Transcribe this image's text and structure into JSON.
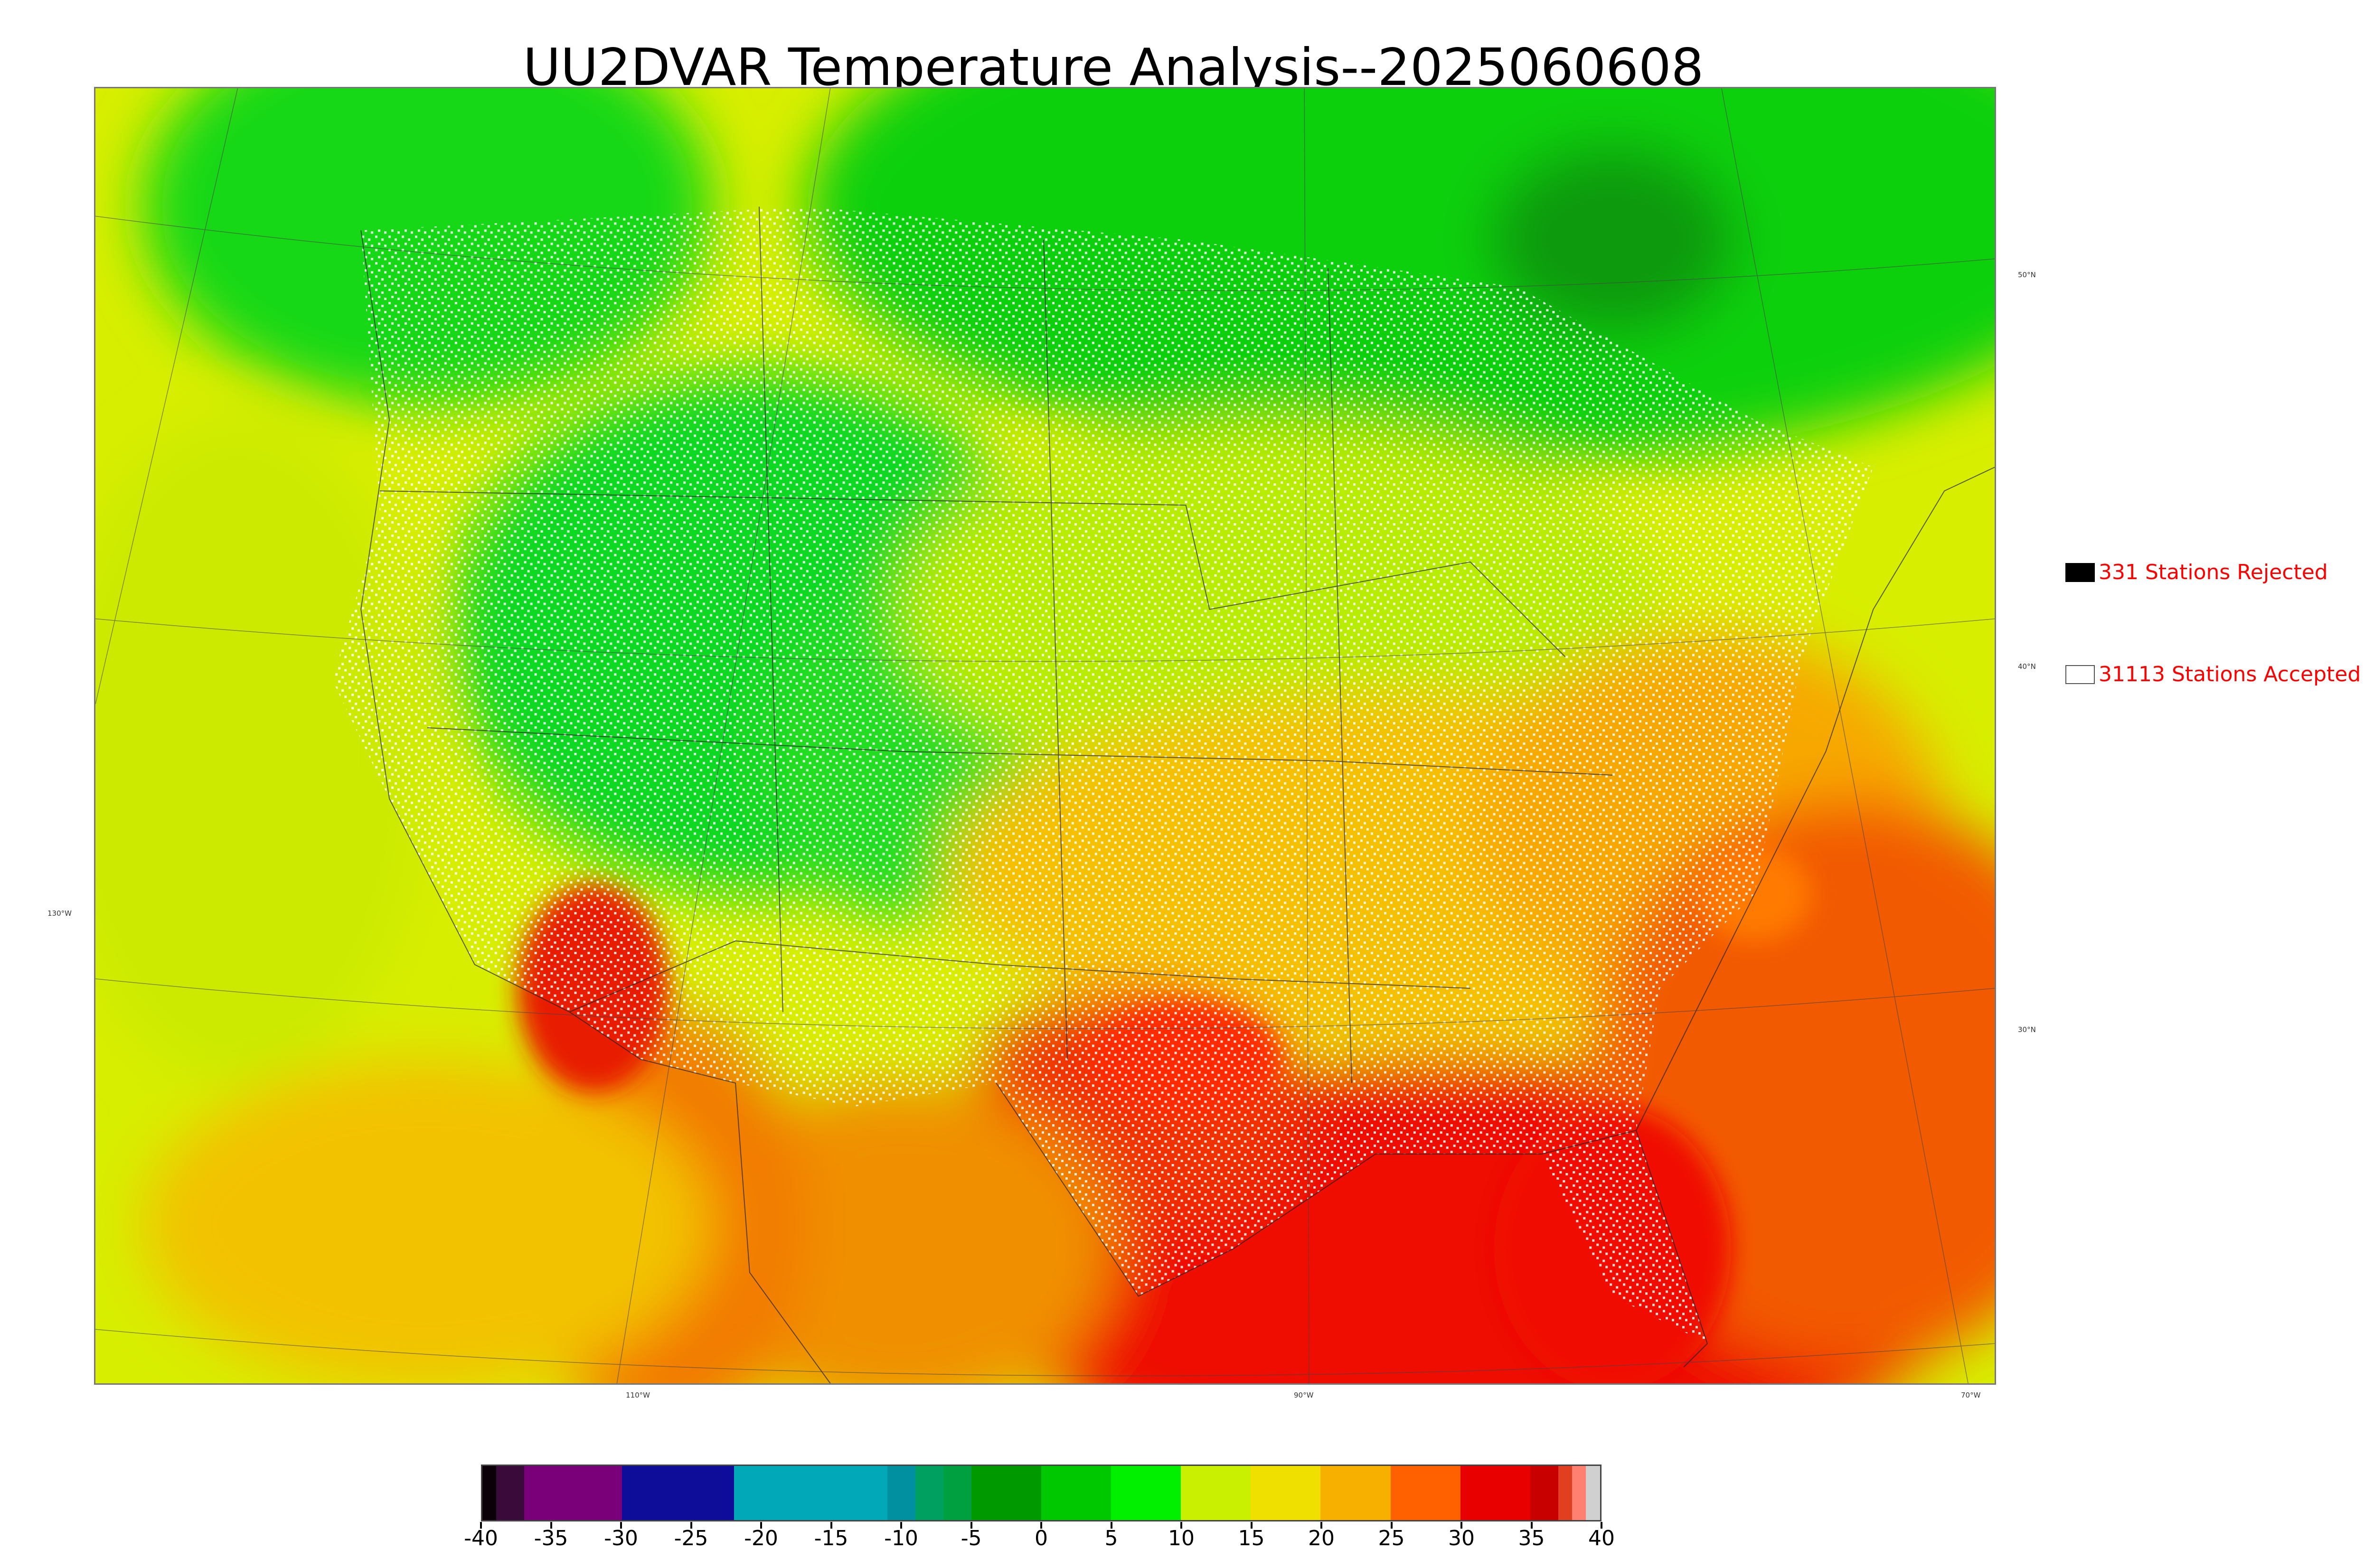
{
  "title": "UU2DVAR Temperature Analysis--2025060608",
  "map": {
    "lon_labels": [
      {
        "text": "130°W"
      },
      {
        "text": "110°W"
      },
      {
        "text": "90°W"
      },
      {
        "text": "70°W"
      }
    ],
    "lat_labels": [
      {
        "text": "50°N"
      },
      {
        "text": "40°N"
      },
      {
        "text": "30°N"
      }
    ]
  },
  "legend": {
    "rejected": {
      "label": "331 Stations Rejected",
      "count": 331,
      "marker_color": "#000000"
    },
    "accepted": {
      "label": "31113 Stations Accepted",
      "count": 31113,
      "marker_color": "#ffffff"
    }
  },
  "colorbar": {
    "ticks": [
      "-40",
      "-35",
      "-30",
      "-25",
      "-20",
      "-15",
      "-10",
      "-5",
      "0",
      "5",
      "10",
      "15",
      "20",
      "25",
      "30",
      "35",
      "40"
    ],
    "range": [
      -40,
      40
    ],
    "colors": [
      {
        "from": -40,
        "to": -39,
        "color": "#0b0008"
      },
      {
        "from": -39,
        "to": -37,
        "color": "#3a0a3a"
      },
      {
        "from": -37,
        "to": -33,
        "color": "#7a007a"
      },
      {
        "from": -33,
        "to": -30,
        "color": "#7a007a"
      },
      {
        "from": -30,
        "to": -25,
        "color": "#0d0d9a"
      },
      {
        "from": -25,
        "to": -22,
        "color": "#0d0d9a"
      },
      {
        "from": -22,
        "to": -20,
        "color": "#00a8b8"
      },
      {
        "from": -20,
        "to": -15,
        "color": "#00a8b8"
      },
      {
        "from": -15,
        "to": -11,
        "color": "#00a8b8"
      },
      {
        "from": -11,
        "to": -9,
        "color": "#0090a0"
      },
      {
        "from": -9,
        "to": -7,
        "color": "#00a060"
      },
      {
        "from": -7,
        "to": -5,
        "color": "#00a040"
      },
      {
        "from": -5,
        "to": 0,
        "color": "#009a00"
      },
      {
        "from": 0,
        "to": 5,
        "color": "#00c800"
      },
      {
        "from": 5,
        "to": 10,
        "color": "#00f000"
      },
      {
        "from": 10,
        "to": 15,
        "color": "#c8f000"
      },
      {
        "from": 15,
        "to": 20,
        "color": "#f0e000"
      },
      {
        "from": 20,
        "to": 25,
        "color": "#f8b000"
      },
      {
        "from": 25,
        "to": 30,
        "color": "#ff6000"
      },
      {
        "from": 30,
        "to": 35,
        "color": "#e80000"
      },
      {
        "from": 35,
        "to": 37,
        "color": "#c80000"
      },
      {
        "from": 37,
        "to": 38,
        "color": "#e04020"
      },
      {
        "from": 38,
        "to": 39,
        "color": "#ff8070"
      },
      {
        "from": 39,
        "to": 40,
        "color": "#d0d0d0"
      }
    ]
  }
}
